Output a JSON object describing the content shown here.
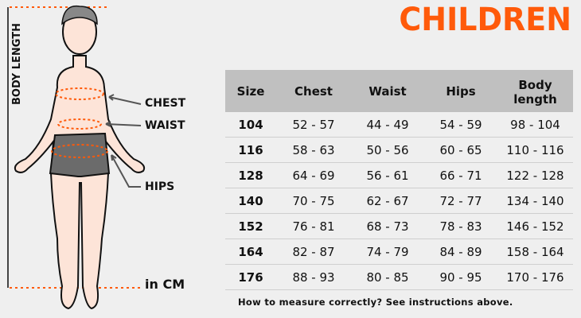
{
  "title": "CHILDREN",
  "figure": {
    "body_length": "BODY LENGTH",
    "chest": "CHEST",
    "waist": "WAIST",
    "hips": "HIPS",
    "unit": "in CM"
  },
  "table": {
    "headers": [
      "Size",
      "Chest",
      "Waist",
      "Hips",
      "Body length"
    ],
    "rows": [
      [
        "104",
        "52 - 57",
        "44 - 49",
        "54 - 59",
        "98 - 104"
      ],
      [
        "116",
        "58 - 63",
        "50 - 56",
        "60 - 65",
        "110 - 116"
      ],
      [
        "128",
        "64 - 69",
        "56 - 61",
        "66 - 71",
        "122 - 128"
      ],
      [
        "140",
        "70 - 75",
        "62 - 67",
        "72 - 77",
        "134 - 140"
      ],
      [
        "152",
        "76 - 81",
        "68 - 73",
        "78 - 83",
        "146 - 152"
      ],
      [
        "164",
        "82 - 87",
        "74 - 79",
        "84 - 89",
        "158 - 164"
      ],
      [
        "176",
        "88 - 93",
        "80 - 85",
        "90 - 95",
        "170 - 176"
      ]
    ]
  },
  "footer": "How to measure correctly? See instructions above.",
  "colors": {
    "accent": "#ff5a0a",
    "header_bg": "#c0c0c0",
    "skin": "#fde4d8",
    "shorts": "#6b6b6b"
  }
}
